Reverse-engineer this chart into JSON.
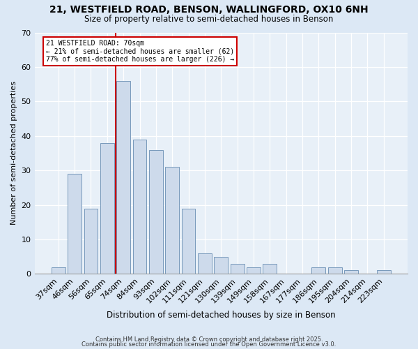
{
  "title_line1": "21, WESTFIELD ROAD, BENSON, WALLINGFORD, OX10 6NH",
  "title_line2": "Size of property relative to semi-detached houses in Benson",
  "xlabel": "Distribution of semi-detached houses by size in Benson",
  "ylabel": "Number of semi-detached properties",
  "categories": [
    "37sqm",
    "46sqm",
    "56sqm",
    "65sqm",
    "74sqm",
    "84sqm",
    "93sqm",
    "102sqm",
    "111sqm",
    "121sqm",
    "130sqm",
    "139sqm",
    "149sqm",
    "158sqm",
    "167sqm",
    "177sqm",
    "186sqm",
    "195sqm",
    "204sqm",
    "214sqm",
    "223sqm"
  ],
  "values": [
    2,
    29,
    19,
    38,
    56,
    39,
    36,
    31,
    19,
    6,
    5,
    3,
    2,
    3,
    0,
    0,
    2,
    2,
    1,
    0,
    1
  ],
  "bar_color": "#cddaeb",
  "bar_edge_color": "#7799bb",
  "red_line_x": 3.5,
  "annotation_title": "21 WESTFIELD ROAD: 70sqm",
  "annotation_line2": "← 21% of semi-detached houses are smaller (62)",
  "annotation_line3": "77% of semi-detached houses are larger (226) →",
  "annotation_box_facecolor": "#ffffff",
  "annotation_box_edgecolor": "#cc0000",
  "ylim": [
    0,
    70
  ],
  "yticks": [
    0,
    10,
    20,
    30,
    40,
    50,
    60,
    70
  ],
  "footer_line1": "Contains HM Land Registry data © Crown copyright and database right 2025.",
  "footer_line2": "Contains public sector information licensed under the Open Government Licence v3.0.",
  "background_color": "#dce8f5",
  "plot_background_color": "#e8f0f8"
}
